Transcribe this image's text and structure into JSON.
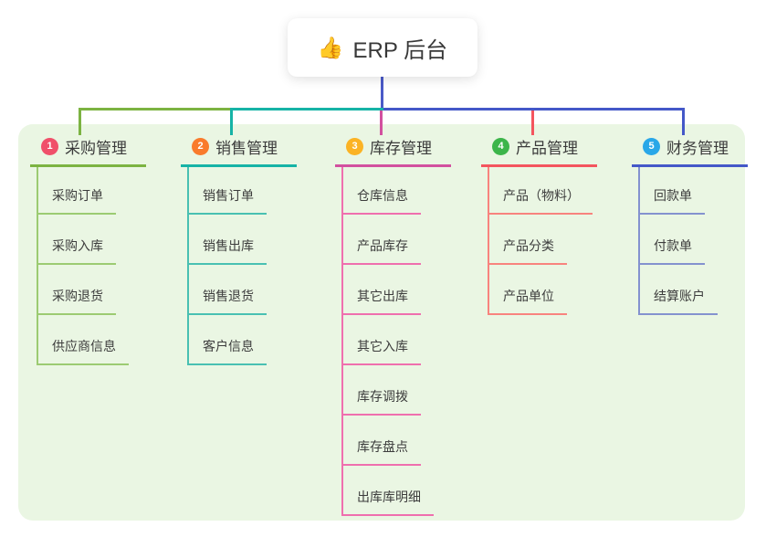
{
  "root": {
    "icon_glyph": "👍",
    "label": "ERP 后台"
  },
  "colors": {
    "panel_background": "#eaf6e3",
    "root_trunk_line": "#4a5ac8"
  },
  "branches": [
    {
      "number": "1",
      "label": "采购管理",
      "badge_color": "#f0506a",
      "line_color": "#7cb342",
      "sub_line_color": "#9ccb72",
      "items": [
        "采购订单",
        "采购入库",
        "采购退货",
        "供应商信息"
      ]
    },
    {
      "number": "2",
      "label": "销售管理",
      "badge_color": "#f97b2c",
      "line_color": "#16b3a6",
      "sub_line_color": "#49c0b2",
      "items": [
        "销售订单",
        "销售出库",
        "销售退货",
        "客户信息"
      ]
    },
    {
      "number": "3",
      "label": "库存管理",
      "badge_color": "#fbb324",
      "line_color": "#d2509f",
      "sub_line_color": "#ef6fae",
      "items": [
        "仓库信息",
        "产品库存",
        "其它出库",
        "其它入库",
        "库存调拨",
        "库存盘点",
        "出库库明细"
      ]
    },
    {
      "number": "4",
      "label": "产品管理",
      "badge_color": "#3cb54a",
      "line_color": "#f4555e",
      "sub_line_color": "#f8837e",
      "items": [
        "产品（物料）",
        "产品分类",
        "产品单位"
      ]
    },
    {
      "number": "5",
      "label": "财务管理",
      "badge_color": "#29a7e8",
      "line_color": "#4458c8",
      "sub_line_color": "#8492cf",
      "items": [
        "回款单",
        "付款单",
        "结算账户"
      ]
    }
  ]
}
